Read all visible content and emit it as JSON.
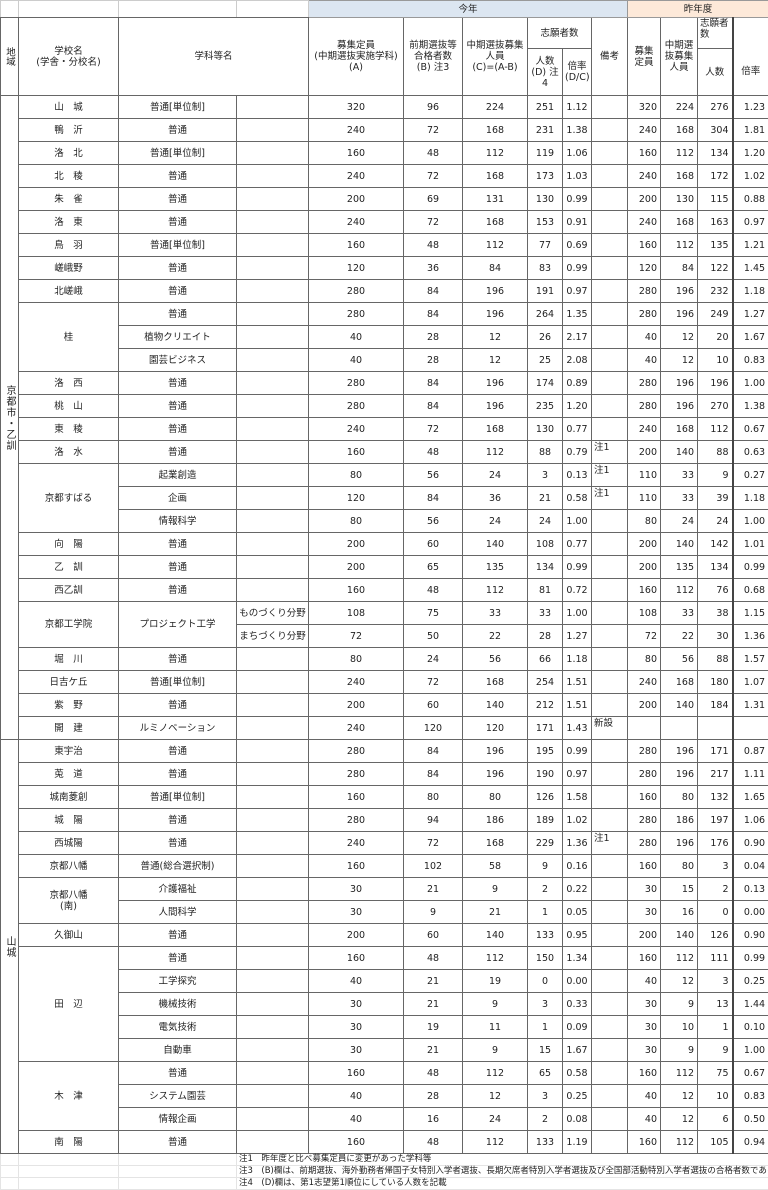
{
  "header": {
    "this_year": "今年",
    "last_year": "昨年度",
    "region": "地域",
    "school": "学校名\n(学舎・分校名)",
    "department": "学科等名",
    "quota": "募集定員\n(中期選抜実施学科)\n(A)",
    "early_passed": "前期選抜等\n合格者数\n(B) 注3",
    "mid_quota": "中期選抜募集\n人員\n(C)=(A-B)",
    "applicants": "志願者数",
    "applicants_count": "人数\n(D) 注4",
    "ratio": "倍率\n(D/C)",
    "remarks": "備考",
    "last_quota": "募集定員",
    "last_mid_quota": "中期選抜募集人員",
    "last_applicants": "志願者数",
    "last_count": "人数",
    "last_ratio": "倍率"
  },
  "colors": {
    "this_year_bg": "#dce6f1",
    "last_year_bg": "#fde9d9"
  },
  "regions": [
    {
      "name": "京都市・乙訓",
      "schools": [
        {
          "name": "山　城",
          "rows": [
            [
              "普通[単位制]",
              "",
              "320",
              "96",
              "224",
              "251",
              "1.12",
              "",
              "320",
              "224",
              "276",
              "1.23"
            ]
          ]
        },
        {
          "name": "鴨　沂",
          "rows": [
            [
              "普通",
              "",
              "240",
              "72",
              "168",
              "231",
              "1.38",
              "",
              "240",
              "168",
              "304",
              "1.81"
            ]
          ]
        },
        {
          "name": "洛　北",
          "rows": [
            [
              "普通[単位制]",
              "",
              "160",
              "48",
              "112",
              "119",
              "1.06",
              "",
              "160",
              "112",
              "134",
              "1.20"
            ]
          ]
        },
        {
          "name": "北　稜",
          "rows": [
            [
              "普通",
              "",
              "240",
              "72",
              "168",
              "173",
              "1.03",
              "",
              "240",
              "168",
              "172",
              "1.02"
            ]
          ]
        },
        {
          "name": "朱　雀",
          "rows": [
            [
              "普通",
              "",
              "200",
              "69",
              "131",
              "130",
              "0.99",
              "",
              "200",
              "130",
              "115",
              "0.88"
            ]
          ]
        },
        {
          "name": "洛　東",
          "rows": [
            [
              "普通",
              "",
              "240",
              "72",
              "168",
              "153",
              "0.91",
              "",
              "240",
              "168",
              "163",
              "0.97"
            ]
          ]
        },
        {
          "name": "鳥　羽",
          "rows": [
            [
              "普通[単位制]",
              "",
              "160",
              "48",
              "112",
              "77",
              "0.69",
              "",
              "160",
              "112",
              "135",
              "1.21"
            ]
          ]
        },
        {
          "name": "嵯峨野",
          "rows": [
            [
              "普通",
              "",
              "120",
              "36",
              "84",
              "83",
              "0.99",
              "",
              "120",
              "84",
              "122",
              "1.45"
            ]
          ]
        },
        {
          "name": "北嵯峨",
          "rows": [
            [
              "普通",
              "",
              "280",
              "84",
              "196",
              "191",
              "0.97",
              "",
              "280",
              "196",
              "232",
              "1.18"
            ]
          ]
        },
        {
          "name": "桂",
          "rows": [
            [
              "普通",
              "",
              "280",
              "84",
              "196",
              "264",
              "1.35",
              "",
              "280",
              "196",
              "249",
              "1.27"
            ],
            [
              "植物クリエイト",
              "",
              "40",
              "28",
              "12",
              "26",
              "2.17",
              "",
              "40",
              "12",
              "20",
              "1.67"
            ],
            [
              "園芸ビジネス",
              "",
              "40",
              "28",
              "12",
              "25",
              "2.08",
              "",
              "40",
              "12",
              "10",
              "0.83"
            ]
          ]
        },
        {
          "name": "洛　西",
          "rows": [
            [
              "普通",
              "",
              "280",
              "84",
              "196",
              "174",
              "0.89",
              "",
              "280",
              "196",
              "196",
              "1.00"
            ]
          ]
        },
        {
          "name": "桃　山",
          "rows": [
            [
              "普通",
              "",
              "280",
              "84",
              "196",
              "235",
              "1.20",
              "",
              "280",
              "196",
              "270",
              "1.38"
            ]
          ]
        },
        {
          "name": "東　稜",
          "rows": [
            [
              "普通",
              "",
              "240",
              "72",
              "168",
              "130",
              "0.77",
              "",
              "240",
              "168",
              "112",
              "0.67"
            ]
          ]
        },
        {
          "name": "洛　水",
          "rows": [
            [
              "普通",
              "",
              "160",
              "48",
              "112",
              "88",
              "0.79",
              "注1",
              "200",
              "140",
              "88",
              "0.63"
            ]
          ]
        },
        {
          "name": "京都すばる",
          "rows": [
            [
              "起業創造",
              "",
              "80",
              "56",
              "24",
              "3",
              "0.13",
              "注1",
              "110",
              "33",
              "9",
              "0.27"
            ],
            [
              "企画",
              "",
              "120",
              "84",
              "36",
              "21",
              "0.58",
              "注1",
              "110",
              "33",
              "39",
              "1.18"
            ],
            [
              "情報科学",
              "",
              "80",
              "56",
              "24",
              "24",
              "1.00",
              "",
              "80",
              "24",
              "24",
              "1.00"
            ]
          ]
        },
        {
          "name": "向　陽",
          "rows": [
            [
              "普通",
              "",
              "200",
              "60",
              "140",
              "108",
              "0.77",
              "",
              "200",
              "140",
              "142",
              "1.01"
            ]
          ]
        },
        {
          "name": "乙　訓",
          "rows": [
            [
              "普通",
              "",
              "200",
              "65",
              "135",
              "134",
              "0.99",
              "",
              "200",
              "135",
              "134",
              "0.99"
            ]
          ]
        },
        {
          "name": "西乙訓",
          "rows": [
            [
              "普通",
              "",
              "160",
              "48",
              "112",
              "81",
              "0.72",
              "",
              "160",
              "112",
              "76",
              "0.68"
            ]
          ]
        },
        {
          "name": "京都工学院",
          "rows": [
            [
              "プロジェクト工学",
              "ものづくり分野",
              "108",
              "75",
              "33",
              "33",
              "1.00",
              "",
              "108",
              "33",
              "38",
              "1.15"
            ],
            [
              "プロジェクト工学",
              "まちづくり分野",
              "72",
              "50",
              "22",
              "28",
              "1.27",
              "",
              "72",
              "22",
              "30",
              "1.36"
            ]
          ]
        },
        {
          "name": "堀　川",
          "rows": [
            [
              "普通",
              "",
              "80",
              "24",
              "56",
              "66",
              "1.18",
              "",
              "80",
              "56",
              "88",
              "1.57"
            ]
          ]
        },
        {
          "name": "日吉ケ丘",
          "rows": [
            [
              "普通[単位制]",
              "",
              "240",
              "72",
              "168",
              "254",
              "1.51",
              "",
              "240",
              "168",
              "180",
              "1.07"
            ]
          ]
        },
        {
          "name": "紫　野",
          "rows": [
            [
              "普通",
              "",
              "200",
              "60",
              "140",
              "212",
              "1.51",
              "",
              "200",
              "140",
              "184",
              "1.31"
            ]
          ]
        },
        {
          "name": "開　建",
          "rows": [
            [
              "ルミノベーション",
              "",
              "240",
              "120",
              "120",
              "171",
              "1.43",
              "新設",
              "",
              "",
              "",
              ""
            ]
          ]
        }
      ]
    },
    {
      "name": "山城",
      "schools": [
        {
          "name": "東宇治",
          "rows": [
            [
              "普通",
              "",
              "280",
              "84",
              "196",
              "195",
              "0.99",
              "",
              "280",
              "196",
              "171",
              "0.87"
            ]
          ]
        },
        {
          "name": "莵　道",
          "rows": [
            [
              "普通",
              "",
              "280",
              "84",
              "196",
              "190",
              "0.97",
              "",
              "280",
              "196",
              "217",
              "1.11"
            ]
          ]
        },
        {
          "name": "城南菱創",
          "rows": [
            [
              "普通[単位制]",
              "",
              "160",
              "80",
              "80",
              "126",
              "1.58",
              "",
              "160",
              "80",
              "132",
              "1.65"
            ]
          ]
        },
        {
          "name": "城　陽",
          "rows": [
            [
              "普通",
              "",
              "280",
              "94",
              "186",
              "189",
              "1.02",
              "",
              "280",
              "186",
              "197",
              "1.06"
            ]
          ]
        },
        {
          "name": "西城陽",
          "rows": [
            [
              "普通",
              "",
              "240",
              "72",
              "168",
              "229",
              "1.36",
              "注1",
              "280",
              "196",
              "176",
              "0.90"
            ]
          ]
        },
        {
          "name": "京都八幡",
          "rows": [
            [
              "普通(総合選択制)",
              "",
              "160",
              "102",
              "58",
              "9",
              "0.16",
              "",
              "160",
              "80",
              "3",
              "0.04"
            ]
          ]
        },
        {
          "name": "京都八幡\n(南)",
          "rows": [
            [
              "介護福祉",
              "",
              "30",
              "21",
              "9",
              "2",
              "0.22",
              "",
              "30",
              "15",
              "2",
              "0.13"
            ],
            [
              "人間科学",
              "",
              "30",
              "9",
              "21",
              "1",
              "0.05",
              "",
              "30",
              "16",
              "0",
              "0.00"
            ]
          ]
        },
        {
          "name": "久御山",
          "rows": [
            [
              "普通",
              "",
              "200",
              "60",
              "140",
              "133",
              "0.95",
              "",
              "200",
              "140",
              "126",
              "0.90"
            ]
          ]
        },
        {
          "name": "田　辺",
          "rows": [
            [
              "普通",
              "",
              "160",
              "48",
              "112",
              "150",
              "1.34",
              "",
              "160",
              "112",
              "111",
              "0.99"
            ],
            [
              "工学探究",
              "",
              "40",
              "21",
              "19",
              "0",
              "0.00",
              "",
              "40",
              "12",
              "3",
              "0.25"
            ],
            [
              "機械技術",
              "",
              "30",
              "21",
              "9",
              "3",
              "0.33",
              "",
              "30",
              "9",
              "13",
              "1.44"
            ],
            [
              "電気技術",
              "",
              "30",
              "19",
              "11",
              "1",
              "0.09",
              "",
              "30",
              "10",
              "1",
              "0.10"
            ],
            [
              "自動車",
              "",
              "30",
              "21",
              "9",
              "15",
              "1.67",
              "",
              "30",
              "9",
              "9",
              "1.00"
            ]
          ]
        },
        {
          "name": "木　津",
          "rows": [
            [
              "普通",
              "",
              "160",
              "48",
              "112",
              "65",
              "0.58",
              "",
              "160",
              "112",
              "75",
              "0.67"
            ],
            [
              "システム園芸",
              "",
              "40",
              "28",
              "12",
              "3",
              "0.25",
              "",
              "40",
              "12",
              "10",
              "0.83"
            ],
            [
              "情報企画",
              "",
              "40",
              "16",
              "24",
              "2",
              "0.08",
              "",
              "40",
              "12",
              "6",
              "0.50"
            ]
          ]
        },
        {
          "name": "南　陽",
          "rows": [
            [
              "普通",
              "",
              "160",
              "48",
              "112",
              "133",
              "1.19",
              "",
              "160",
              "112",
              "105",
              "0.94"
            ]
          ]
        }
      ]
    }
  ],
  "footnotes": [
    "注1　昨年度と比べ募集定員に変更があった学科等",
    "注3　(B)欄は、前期選抜、海外勤務者帰国子女特別入学者選抜、長期欠席者特別入学者選抜及び全国部活動特別入学者選抜の合格者数である。",
    "注4　(D)欄は、第1志望第1順位にしている人数を記載"
  ]
}
